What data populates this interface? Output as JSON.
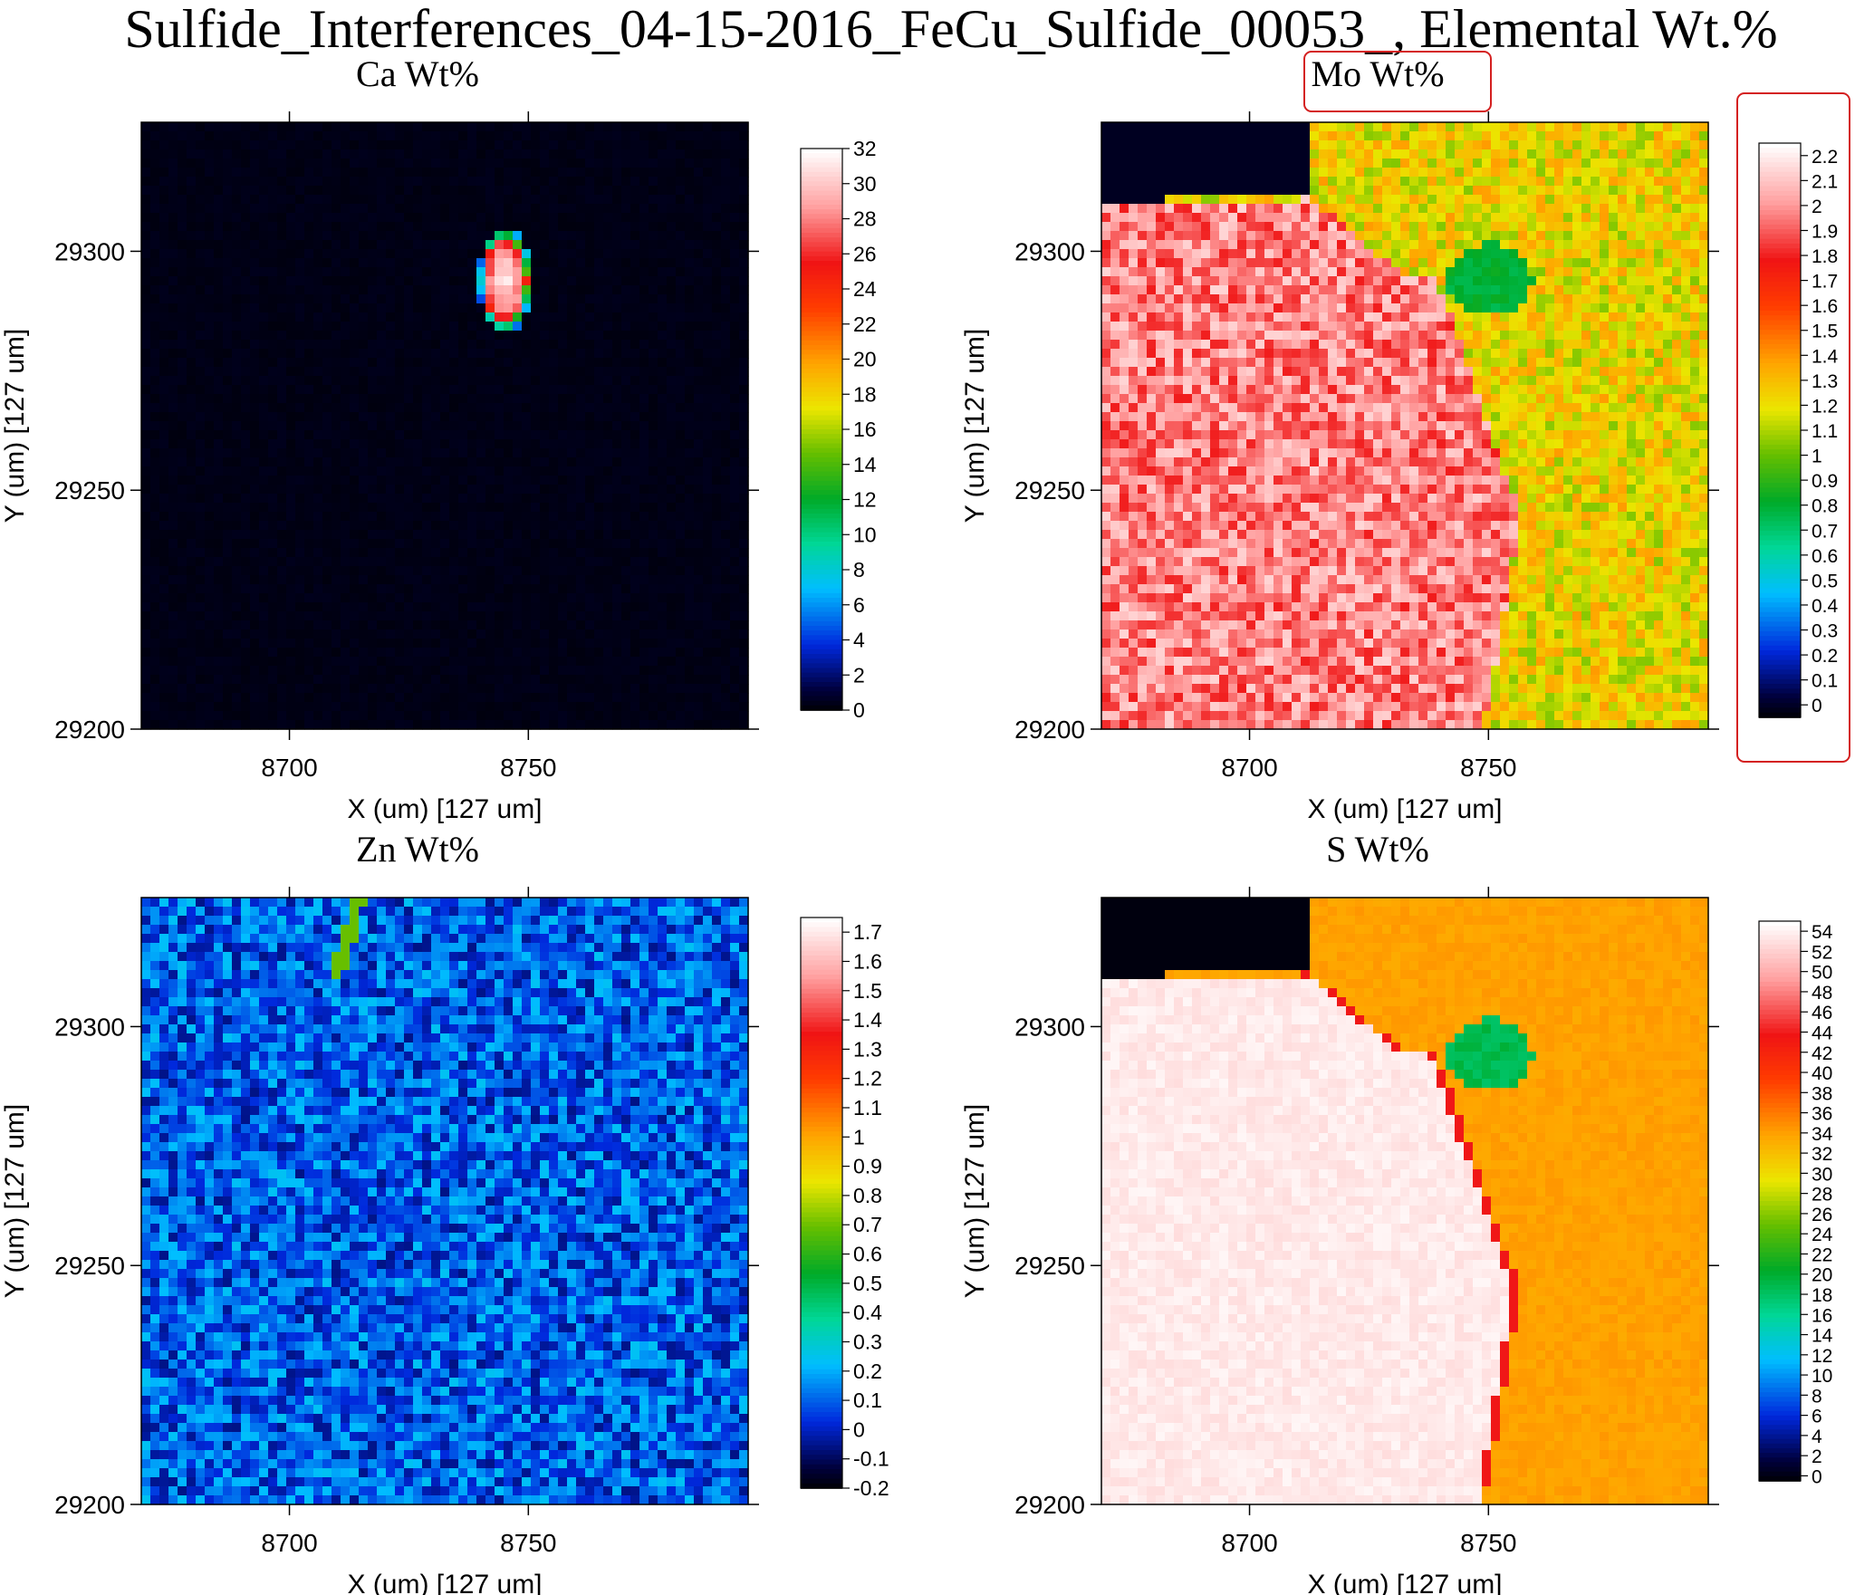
{
  "figure": {
    "title": "Sulfide_Interferences_04-15-2016_FeCu_Sulfide_00053_, Elemental Wt.%"
  },
  "chart_data": [
    {
      "type": "heatmap",
      "title": "Ca Wt%",
      "xlabel": "X (um)   [127 um]",
      "ylabel": "Y (um)   [127 um]",
      "x_ticks": [
        8700,
        8750
      ],
      "y_ticks": [
        29200,
        29250,
        29300
      ],
      "xlim": [
        8669,
        8796
      ],
      "ylim": [
        29200,
        29327
      ],
      "colorbar": {
        "range": [
          0,
          32
        ],
        "ticks": [
          32,
          30,
          28,
          26,
          24,
          22,
          20,
          18,
          16,
          14,
          12,
          10,
          8,
          6,
          4,
          2,
          0
        ]
      },
      "background_value": 0.3,
      "features": [
        {
          "kind": "grain",
          "description_value": 31,
          "x": [
            8737,
            8756
          ],
          "y": [
            29282,
            29308
          ]
        }
      ]
    },
    {
      "type": "heatmap",
      "title": "Mo Wt%",
      "highlighted": true,
      "xlabel": "X (um)   [127 um]",
      "ylabel": "Y (um)   [127 um]",
      "x_ticks": [
        8700,
        8750
      ],
      "y_ticks": [
        29200,
        29250,
        29300
      ],
      "xlim": [
        8669,
        8796
      ],
      "ylim": [
        29200,
        29327
      ],
      "colorbar": {
        "range": [
          -0.05,
          2.25
        ],
        "ticks": [
          2.2,
          2.1,
          2,
          1.9,
          1.8,
          1.7,
          1.6,
          1.5,
          1.4,
          1.3,
          1.2,
          1.1,
          1,
          0.9,
          0.8,
          0.7,
          0.6,
          0.5,
          0.4,
          0.3,
          0.2,
          0.1,
          0
        ]
      },
      "region_values": {
        "left": 1.85,
        "right": 1.25,
        "inclusion": 0.75,
        "corner": 0.0
      }
    },
    {
      "type": "heatmap",
      "title": "Zn Wt%",
      "xlabel": "X (um)   [127 um]",
      "ylabel": "Y (um)   [127 um]",
      "x_ticks": [
        8700,
        8750
      ],
      "y_ticks": [
        29200,
        29250,
        29300
      ],
      "xlim": [
        8669,
        8796
      ],
      "ylim": [
        29200,
        29327
      ],
      "colorbar": {
        "range": [
          -0.2,
          1.75
        ],
        "ticks": [
          1.7,
          1.6,
          1.5,
          1.4,
          1.3,
          1.2,
          1.1,
          1,
          0.9,
          0.8,
          0.7,
          0.6,
          0.5,
          0.4,
          0.3,
          0.2,
          0.1,
          0,
          -0.1,
          -0.2
        ]
      },
      "background_value": 0.05
    },
    {
      "type": "heatmap",
      "title": "S Wt%",
      "xlabel": "X (um)   [127 um]",
      "ylabel": "Y (um)   [127 um]",
      "x_ticks": [
        8700,
        8750
      ],
      "y_ticks": [
        29200,
        29250,
        29300
      ],
      "xlim": [
        8669,
        8796
      ],
      "ylim": [
        29200,
        29327
      ],
      "colorbar": {
        "range": [
          -0.5,
          55
        ],
        "ticks": [
          54,
          52,
          50,
          48,
          46,
          44,
          42,
          40,
          38,
          36,
          34,
          32,
          30,
          28,
          26,
          24,
          22,
          20,
          18,
          16,
          14,
          12,
          10,
          8,
          6,
          4,
          2,
          0
        ]
      },
      "region_values": {
        "left": 54,
        "right": 34,
        "inclusion": 18,
        "corner": 0,
        "boundary": 44
      }
    }
  ],
  "colors": {
    "highlight": "#d42020",
    "axis": "#000000"
  }
}
